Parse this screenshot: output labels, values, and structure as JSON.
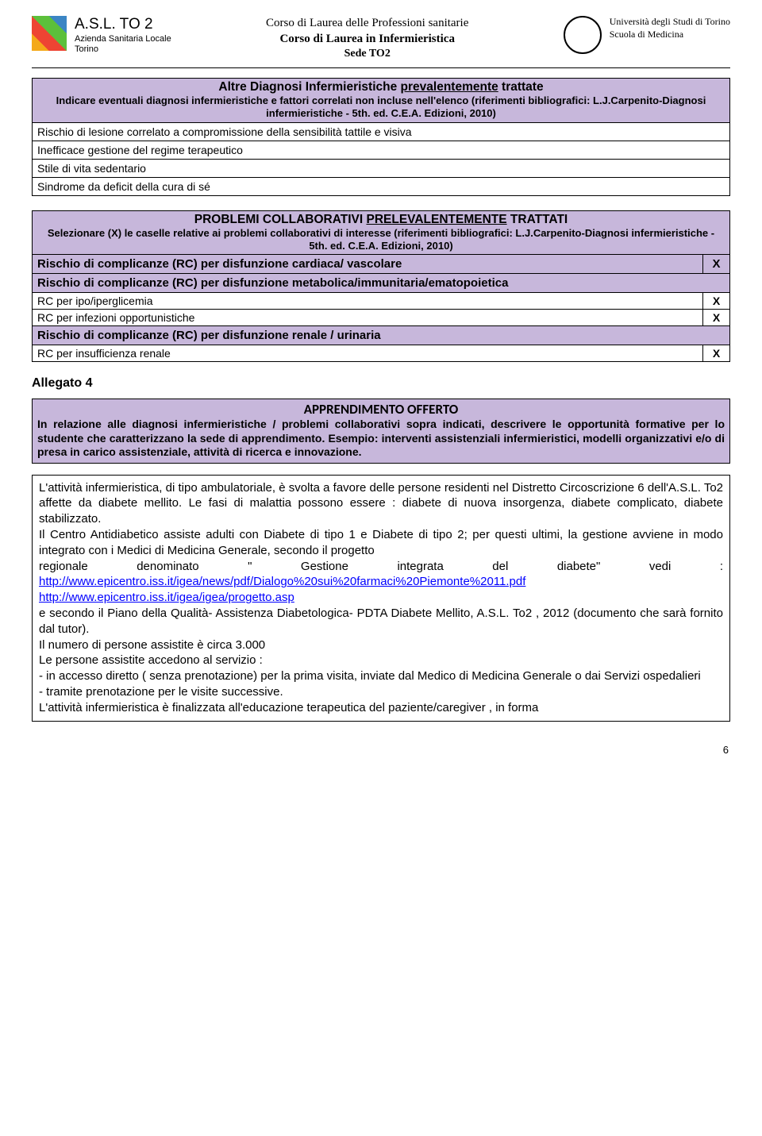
{
  "header": {
    "asl_title": "A.S.L. TO 2",
    "asl_sub1": "Azienda Sanitaria Locale",
    "asl_sub2": "Torino",
    "center_line1": "Corso di Laurea delle Professioni sanitarie",
    "center_line2": "Corso di Laurea in Infermieristica",
    "center_line3": "Sede TO2",
    "uni_line1": "Università degli Studi di Torino",
    "uni_line2": "Scuola di Medicina"
  },
  "box1": {
    "title_pre": "Altre Diagnosi Infermieristiche ",
    "title_underline": "prevalentemente",
    "title_post": " trattate",
    "sub": "Indicare eventuali diagnosi infermieristiche e fattori correlati non incluse nell'elenco (riferimenti bibliografici: L.J.Carpenito-Diagnosi infermieristiche - 5th. ed. C.E.A. Edizioni, 2010)",
    "rows": [
      "Rischio di lesione correlato a compromissione della sensibilità tattile e visiva",
      "Inefficace gestione del regime terapeutico",
      "Stile di vita sedentario",
      "Sindrome da deficit della cura di sé"
    ]
  },
  "box2": {
    "title_pre": "PROBLEMI COLLABORATIVI ",
    "title_underline": "PRELEVALENTEMENTE",
    "title_post": " TRATTATI",
    "sub": "Selezionare (X) le caselle relative ai problemi collaborativi di interesse (riferimenti bibliografici: L.J.Carpenito-Diagnosi infermieristiche - 5th. ed. C.E.A. Edizioni, 2010)",
    "cat1": "Rischio di complicanze (RC) per  disfunzione cardiaca/ vascolare",
    "cat1_x": "X",
    "cat2": "Rischio di complicanze (RC) per  disfunzione metabolica/immunitaria/ematopoietica",
    "row2a": "RC per ipo/iperglicemia",
    "row2a_x": "X",
    "row2b": "RC per infezioni opportunistiche",
    "row2b_x": "X",
    "cat3": "Rischio di complicanze (RC) per  disfunzione renale / urinaria",
    "row3a": "RC per insufficienza renale",
    "row3a_x": "X"
  },
  "allegato": "Allegato 4",
  "appr": {
    "title": "APPRENDIMENTO OFFERTO",
    "body": "In relazione alle diagnosi infermieristiche / problemi collaborativi sopra indicati, descrivere le opportunità formative per lo studente che caratterizzano la sede di apprendimento. Esempio: interventi assistenziali infermieristici, modelli organizzativi e/o di presa in carico assistenziale,  attività di ricerca e innovazione."
  },
  "main": {
    "p1": "L'attività infermieristica, di tipo ambulatoriale, è svolta a favore delle persone residenti nel Distretto Circoscrizione 6 dell'A.S.L. To2 affette da diabete mellito. Le fasi di malattia possono essere : diabete di nuova insorgenza, diabete complicato, diabete stabilizzato.",
    "p2": "Il Centro Antidiabetico assiste adulti con Diabete di tipo 1 e Diabete di tipo 2; per questi ultimi, la gestione avviene in modo integrato con i Medici di Medicina Generale, secondo il progetto",
    "p2b_pre": "regionale",
    "p2b_mid1": "denominato",
    "p2b_mid2": "\"",
    "p2b_mid3": "Gestione",
    "p2b_mid4": "integrata",
    "p2b_mid5": "del",
    "p2b_mid6": "diabete\"",
    "p2b_mid7": "vedi",
    "p2b_post": ":",
    "link1": "http://www.epicentro.iss.it/igea/news/pdf/Dialogo%20sui%20farmaci%20Piemonte%2011.pdf",
    "link2": "http://www.epicentro.iss.it/igea/igea/progetto.asp",
    "p3": "e secondo il Piano della Qualità- Assistenza Diabetologica- PDTA Diabete Mellito, A.S.L. To2 , 2012 (documento che sarà fornito dal tutor).",
    "p4": "Il numero di persone assistite è circa 3.000",
    "p5": "Le persone assistite accedono al servizio :",
    "p6": "- in accesso diretto ( senza prenotazione) per la prima visita, inviate dal Medico di Medicina Generale o dai Servizi ospedalieri",
    "p7": "- tramite prenotazione per le visite successive.",
    "p8": "L'attività infermieristica è finalizzata all'educazione terapeutica del paziente/caregiver , in forma"
  },
  "page_num": "6",
  "colors": {
    "lavender": "#c7b7db",
    "link": "#0000ff"
  }
}
